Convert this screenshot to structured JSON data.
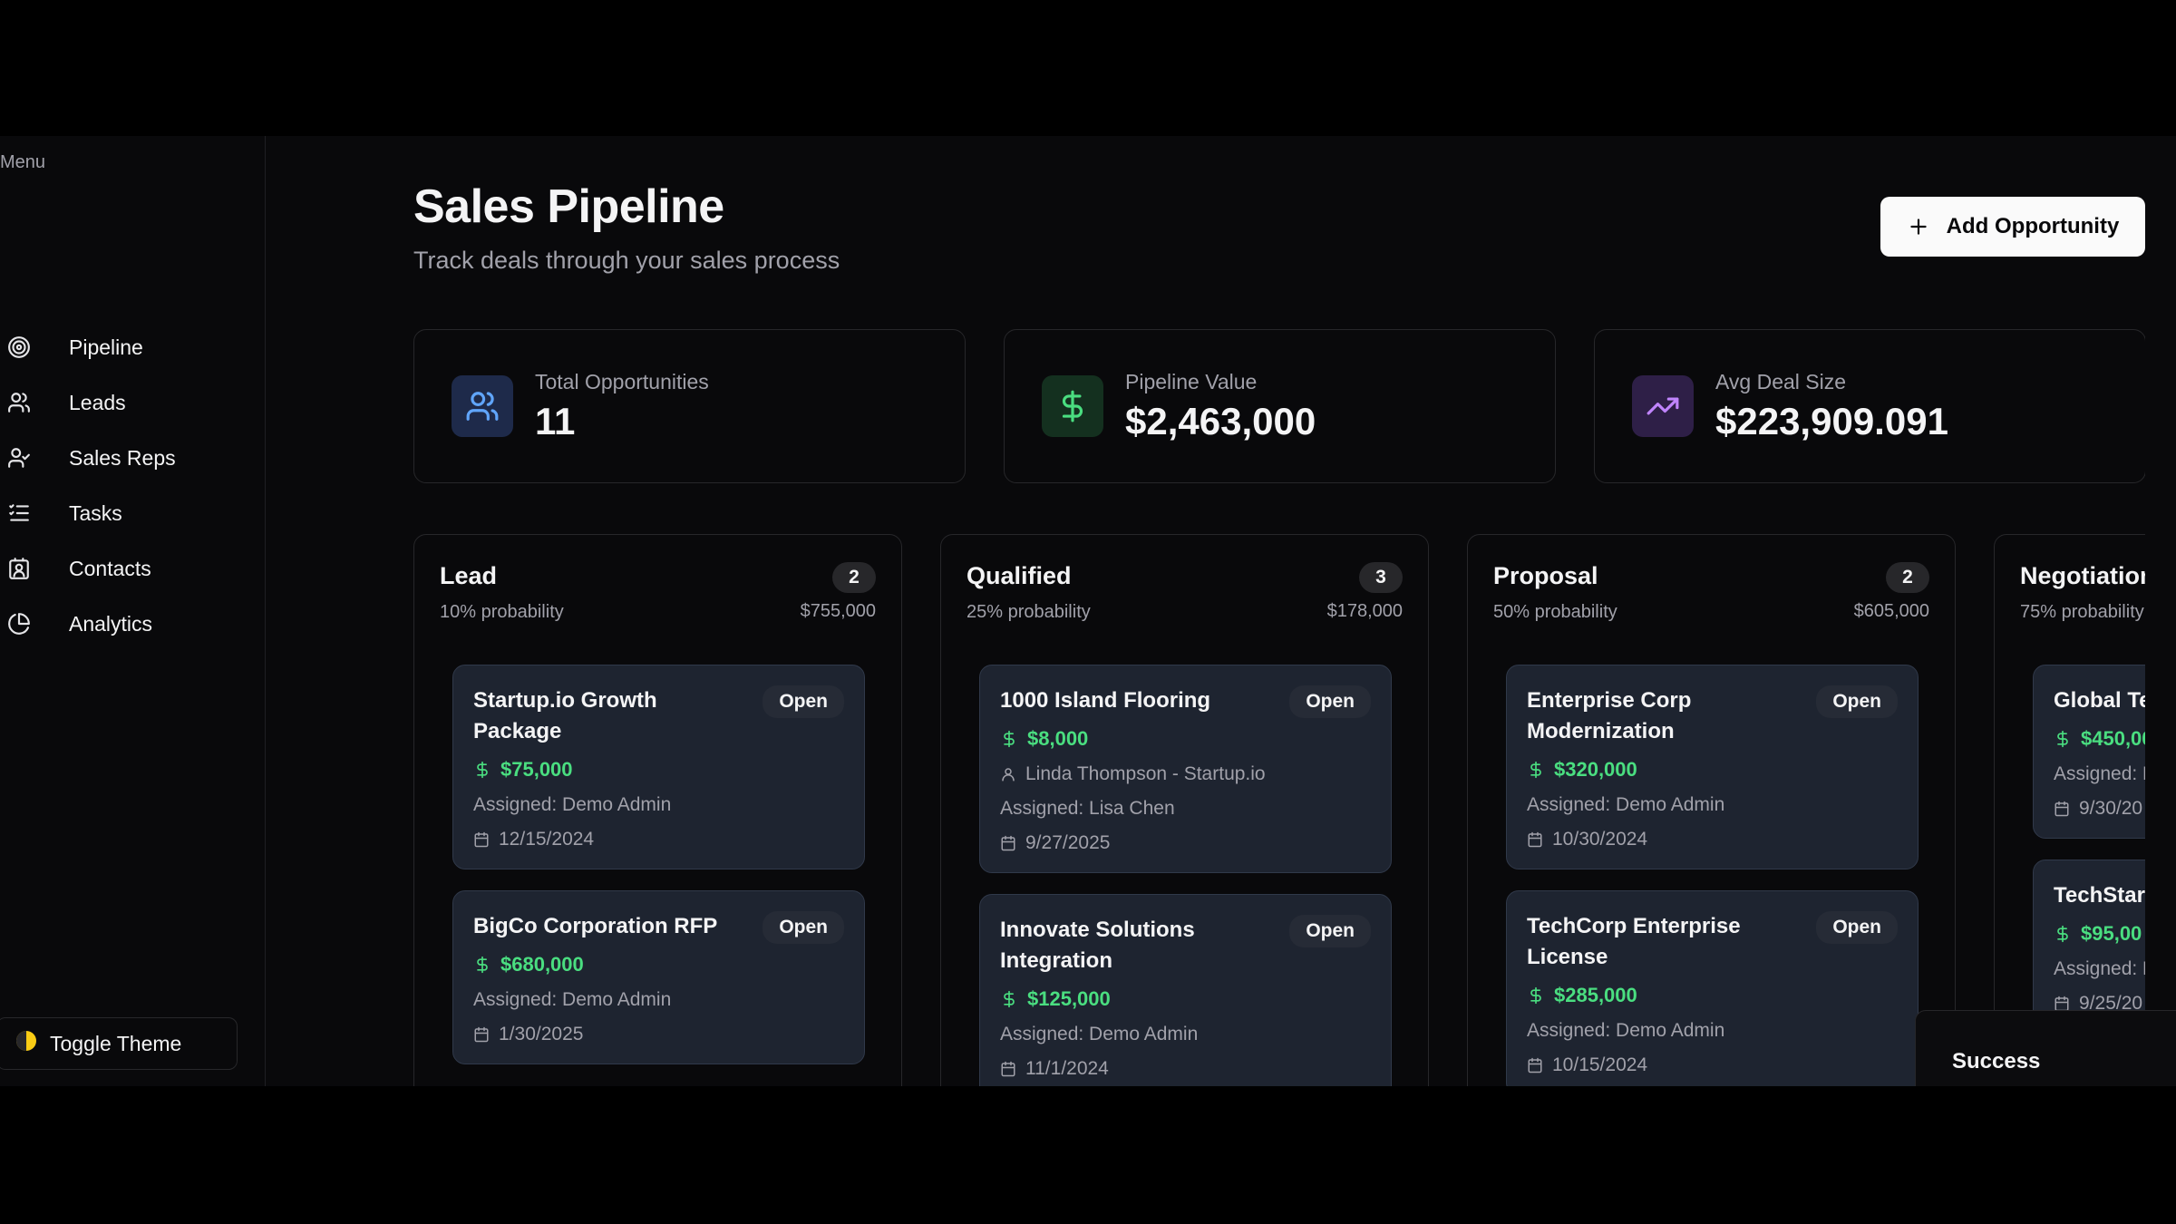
{
  "sidebar": {
    "heading": "Menu",
    "items": [
      "Pipeline",
      "Leads",
      "Sales Reps",
      "Tasks",
      "Contacts",
      "Analytics"
    ],
    "toggle": "Toggle Theme"
  },
  "header": {
    "title": "Sales Pipeline",
    "subtitle": "Track deals through your sales process",
    "action": "Add Opportunity"
  },
  "stats": [
    {
      "label": "Total Opportunities",
      "value": "11"
    },
    {
      "label": "Pipeline Value",
      "value": "$2,463,000"
    },
    {
      "label": "Avg Deal Size",
      "value": "$223,909.091"
    }
  ],
  "columns": [
    {
      "name": "Lead",
      "count": "2",
      "probability": "10% probability",
      "total": "$755,000",
      "cards": [
        {
          "title": "Startup.io Growth Package",
          "status": "Open",
          "amount": "$75,000",
          "assigned": "Assigned: Demo Admin",
          "date": "12/15/2024"
        },
        {
          "title": "BigCo Corporation RFP",
          "status": "Open",
          "amount": "$680,000",
          "assigned": "Assigned: Demo Admin",
          "date": "1/30/2025"
        }
      ]
    },
    {
      "name": "Qualified",
      "count": "3",
      "probability": "25% probability",
      "total": "$178,000",
      "cards": [
        {
          "title": "1000 Island Flooring",
          "status": "Open",
          "amount": "$8,000",
          "contact": "Linda Thompson - Startup.io",
          "assigned": "Assigned: Lisa Chen",
          "date": "9/27/2025"
        },
        {
          "title": "Innovate Solutions Integration",
          "status": "Open",
          "amount": "$125,000",
          "assigned": "Assigned: Demo Admin",
          "date": "11/1/2024"
        }
      ]
    },
    {
      "name": "Proposal",
      "count": "2",
      "probability": "50% probability",
      "total": "$605,000",
      "cards": [
        {
          "title": "Enterprise Corp Modernization",
          "status": "Open",
          "amount": "$320,000",
          "assigned": "Assigned: Demo Admin",
          "date": "10/30/2024"
        },
        {
          "title": "TechCorp Enterprise License",
          "status": "Open",
          "amount": "$285,000",
          "assigned": "Assigned: Demo Admin",
          "date": "10/15/2024"
        }
      ]
    },
    {
      "name": "Negotiation",
      "probability": "75% probability",
      "cards": [
        {
          "title": "Global Te",
          "amount": "$450,00",
          "assigned": "Assigned: D",
          "date": "9/30/20"
        },
        {
          "title": "TechStart Tools",
          "amount": "$95,00",
          "assigned": "Assigned: D",
          "date": "9/25/20"
        }
      ]
    }
  ],
  "toast": "Success"
}
